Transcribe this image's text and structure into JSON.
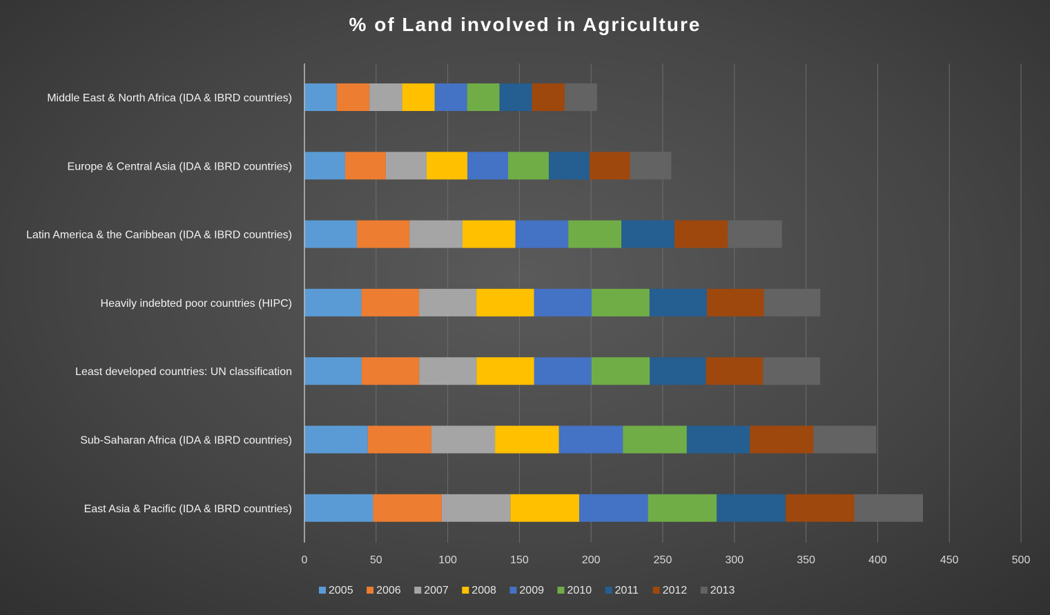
{
  "chart_data": {
    "type": "bar",
    "orientation": "horizontal",
    "stacked": true,
    "title": "% of Land involved in Agriculture",
    "xlabel": "",
    "ylabel": "",
    "xlim": [
      0,
      500
    ],
    "x_ticks": [
      0,
      50,
      100,
      150,
      200,
      250,
      300,
      350,
      400,
      450,
      500
    ],
    "grid": true,
    "legend_position": "bottom",
    "categories": [
      "Middle East & North Africa (IDA & IBRD countries)",
      "Europe & Central Asia (IDA & IBRD countries)",
      "Latin America & the Caribbean (IDA & IBRD countries)",
      "Heavily indebted poor countries (HIPC)",
      "Least developed countries: UN classification",
      "Sub-Saharan Africa (IDA & IBRD countries)",
      "East Asia & Pacific (IDA & IBRD countries)"
    ],
    "series": [
      {
        "name": "2005",
        "color": "#5B9BD5",
        "values": [
          22.6,
          28.4,
          36.6,
          39.8,
          39.9,
          44.2,
          47.9
        ]
      },
      {
        "name": "2006",
        "color": "#ED7D31",
        "values": [
          22.8,
          28.4,
          36.8,
          40.2,
          40.2,
          44.4,
          47.9
        ]
      },
      {
        "name": "2007",
        "color": "#A5A5A5",
        "values": [
          22.8,
          28.4,
          36.9,
          40.0,
          40.0,
          44.4,
          47.9
        ]
      },
      {
        "name": "2008",
        "color": "#FFC000",
        "values": [
          22.7,
          28.5,
          36.9,
          40.2,
          40.2,
          44.6,
          48.0
        ]
      },
      {
        "name": "2009",
        "color": "#4472C4",
        "values": [
          22.6,
          28.4,
          36.9,
          40.2,
          40.0,
          44.6,
          48.0
        ]
      },
      {
        "name": "2010",
        "color": "#70AD47",
        "values": [
          22.6,
          28.4,
          37.1,
          40.4,
          40.7,
          44.6,
          48.0
        ]
      },
      {
        "name": "2011",
        "color": "#255E91",
        "values": [
          22.6,
          28.4,
          37.0,
          40.0,
          39.1,
          44.0,
          48.0
        ]
      },
      {
        "name": "2012",
        "color": "#9E480E",
        "values": [
          22.9,
          28.4,
          37.2,
          39.8,
          39.9,
          44.4,
          48.0
        ]
      },
      {
        "name": "2013",
        "color": "#636363",
        "values": [
          22.6,
          28.7,
          37.8,
          39.4,
          39.8,
          43.8,
          47.9
        ]
      }
    ]
  }
}
